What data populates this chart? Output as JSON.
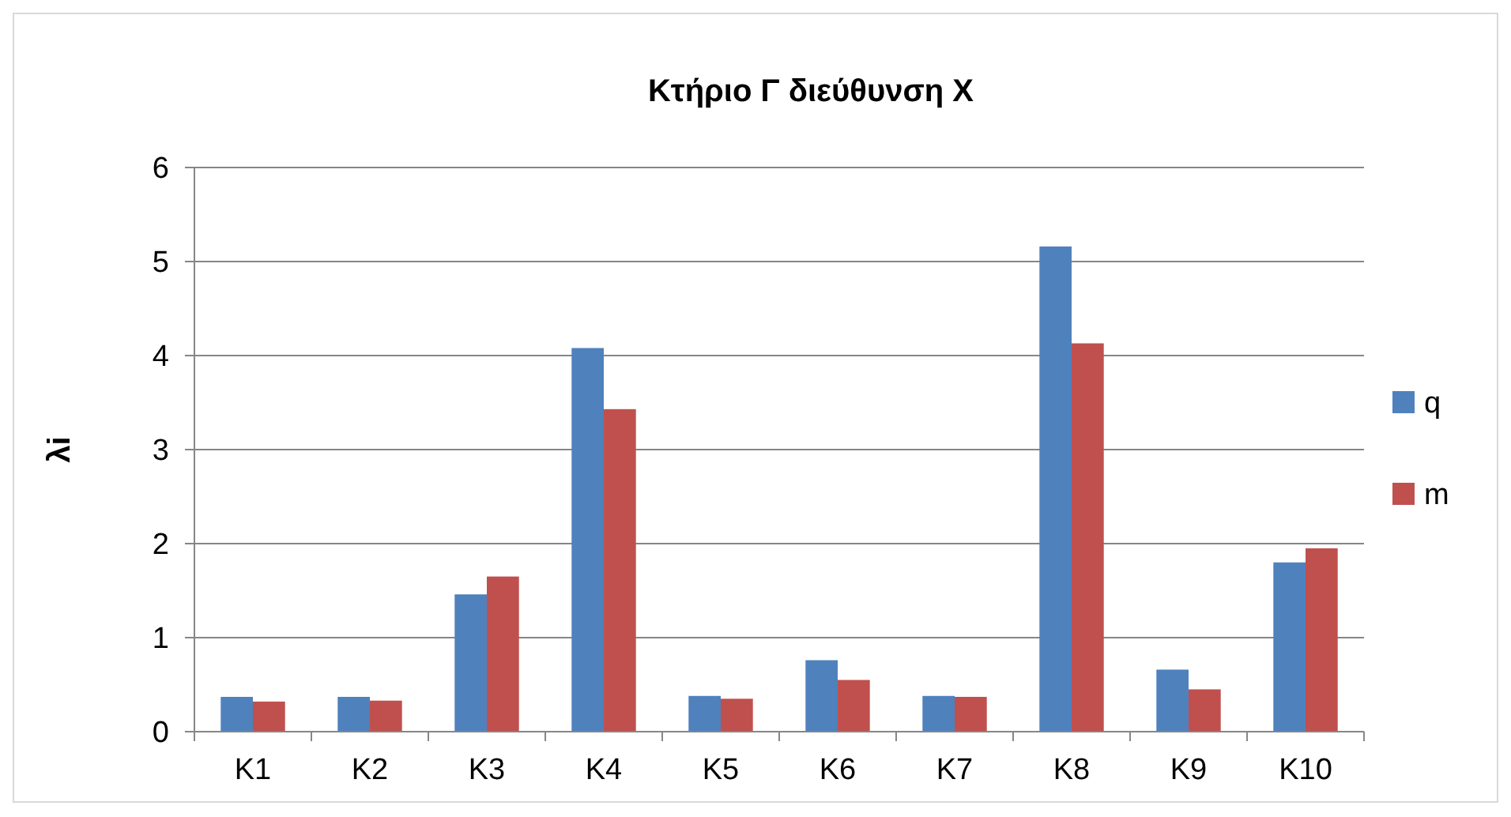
{
  "chart_data": {
    "type": "bar",
    "title": "Κτήριο Γ διεύθυνση Χ",
    "ylabel": "λi",
    "categories": [
      "K1",
      "K2",
      "K3",
      "K4",
      "K5",
      "K6",
      "K7",
      "K8",
      "K9",
      "K10"
    ],
    "series": [
      {
        "name": "q",
        "color": "#4f81bd",
        "values": [
          0.37,
          0.37,
          1.46,
          4.08,
          0.38,
          0.76,
          0.38,
          5.16,
          0.66,
          1.8
        ]
      },
      {
        "name": "m",
        "color": "#c0504d",
        "values": [
          0.32,
          0.33,
          1.65,
          3.43,
          0.35,
          0.55,
          0.37,
          4.13,
          0.45,
          1.95
        ]
      }
    ],
    "ylim": [
      0,
      6
    ],
    "yticks": [
      0,
      1,
      2,
      3,
      4,
      5,
      6
    ],
    "grid": "y",
    "legend": "right"
  }
}
